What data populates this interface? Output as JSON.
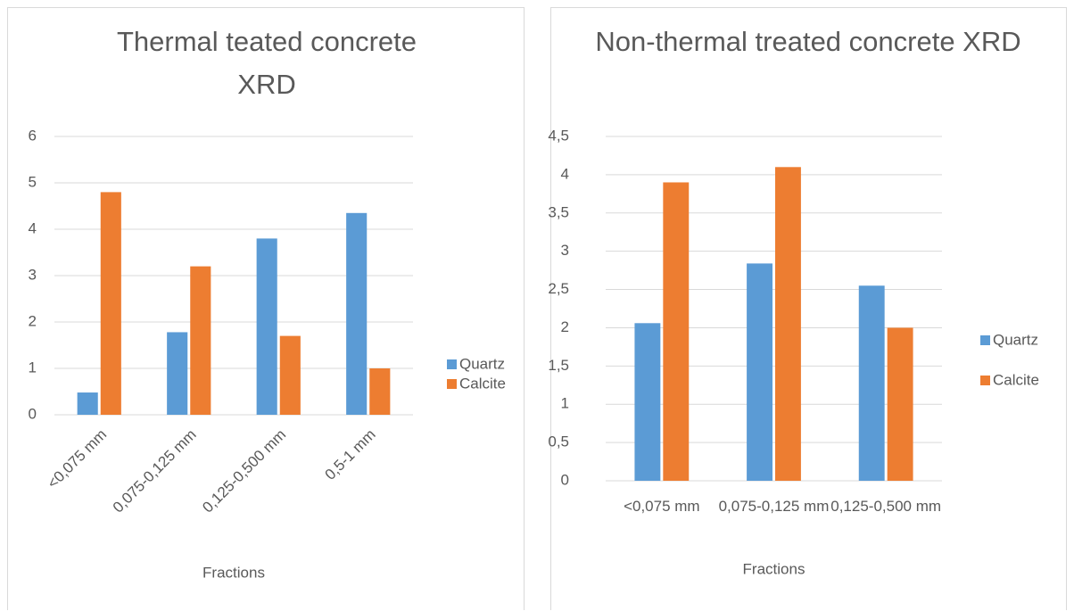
{
  "chart_data": [
    {
      "type": "bar",
      "title": "Thermal teated concrete XRD",
      "x_label": "Fractions",
      "categories": [
        "<0,075 mm",
        "0,075-0,125 mm",
        "0,125-0,500 mm",
        "0,5-1 mm"
      ],
      "series": [
        {
          "name": "Quartz",
          "color": "#5b9bd5",
          "values": [
            0.48,
            1.78,
            3.8,
            4.35
          ]
        },
        {
          "name": "Calcite",
          "color": "#ed7d31",
          "values": [
            4.8,
            3.2,
            1.7,
            1.0
          ]
        }
      ],
      "ylim": [
        0,
        6
      ],
      "yticks": [
        0,
        1,
        2,
        3,
        4,
        5,
        6
      ],
      "grid": true,
      "legend": "right"
    },
    {
      "type": "bar",
      "title": "Non-thermal treated concrete XRD",
      "x_label": "Fractions",
      "categories": [
        "<0,075 mm",
        "0,075-0,125 mm",
        "0,125-0,500 mm"
      ],
      "series": [
        {
          "name": "Quartz",
          "color": "#5b9bd5",
          "values": [
            2.06,
            2.84,
            2.55
          ]
        },
        {
          "name": "Calcite",
          "color": "#ed7d31",
          "values": [
            3.9,
            4.1,
            2.0
          ]
        }
      ],
      "ylim": [
        0,
        4.5
      ],
      "yticks": [
        0,
        {
          "value": 0.5,
          "label": "0,5"
        },
        1,
        {
          "value": 1.5,
          "label": "1,5"
        },
        2,
        {
          "value": 2.5,
          "label": "2,5"
        },
        3,
        {
          "value": 3.5,
          "label": "3,5"
        },
        4,
        {
          "value": 4.5,
          "label": "4,5"
        }
      ],
      "grid": true,
      "legend": "right"
    }
  ]
}
